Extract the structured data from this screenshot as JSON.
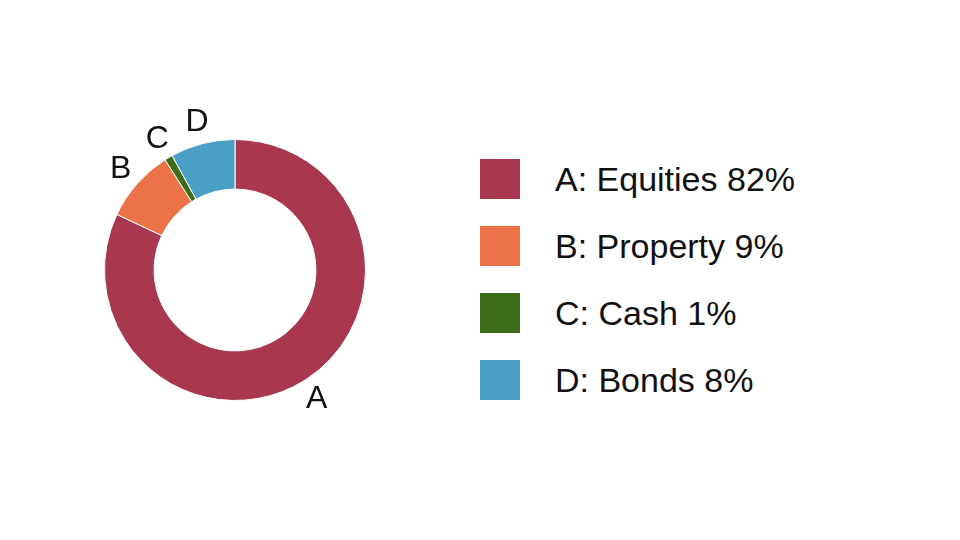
{
  "chart_data": {
    "type": "doughnut",
    "categories": [
      "A: Equities 82%",
      "B: Property 9%",
      "C: Cash 1%",
      "D: Bonds 8%"
    ],
    "slice_labels": [
      "A",
      "B",
      "C",
      "D"
    ],
    "values": [
      82,
      9,
      1,
      8
    ],
    "colors": [
      "#a8374f",
      "#ee7248",
      "#3c6e1a",
      "#4a9fc4"
    ],
    "legend": "right"
  }
}
